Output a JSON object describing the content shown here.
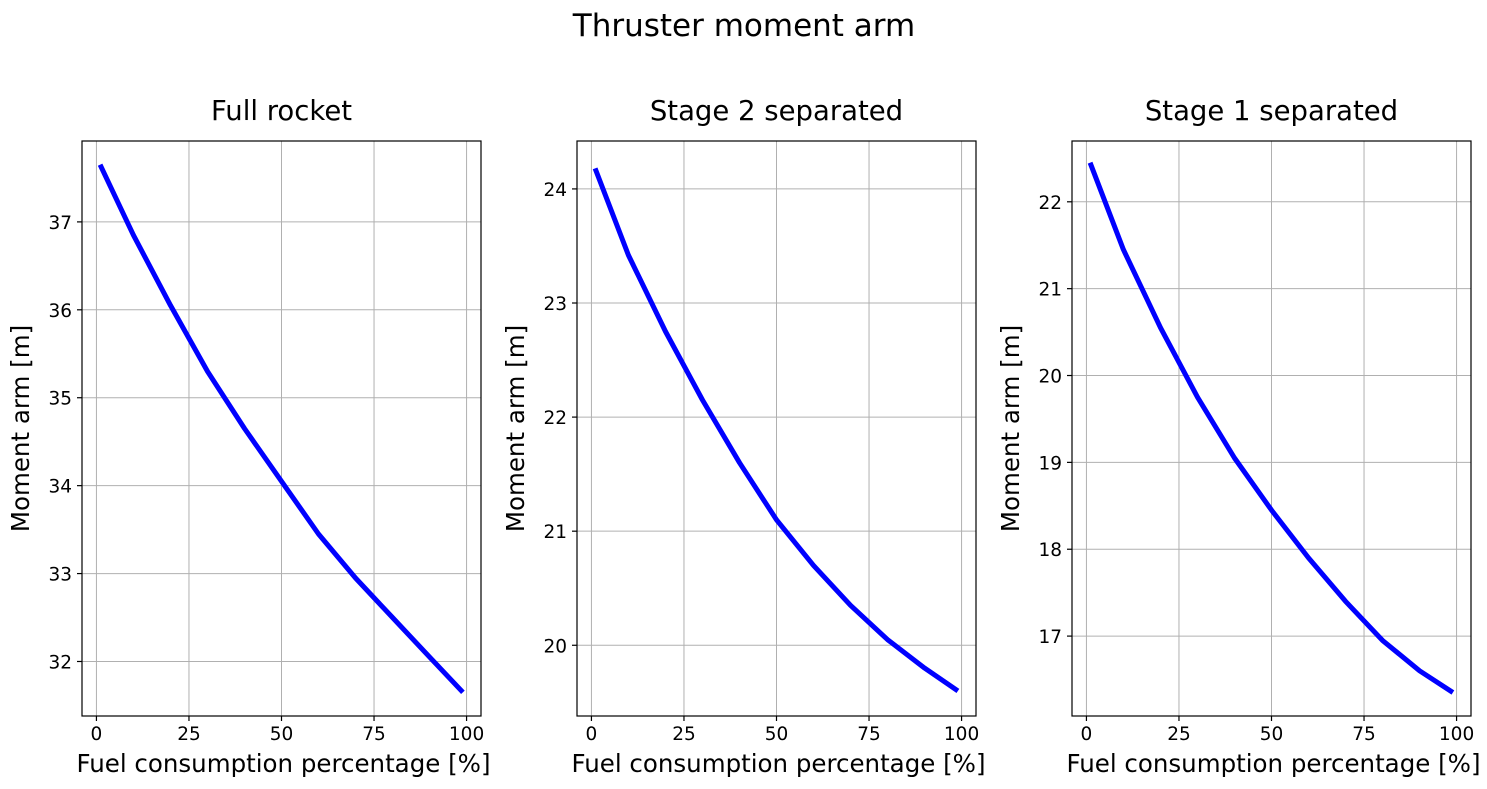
{
  "figure": {
    "title": "Thruster moment arm"
  },
  "style": {
    "line_color": "#0000ff",
    "grid_color": "#b0b0b0",
    "frame_color": "#000000",
    "background": "#ffffff"
  },
  "chart_data": [
    {
      "type": "line",
      "title": "Full rocket",
      "xlabel": "Fuel consumption percentage [%]",
      "ylabel": "Moment arm [m]",
      "xlim": [
        -3.9,
        103.9
      ],
      "ylim": [
        31.38,
        37.92
      ],
      "xticks": [
        0,
        25,
        50,
        75,
        100
      ],
      "yticks": [
        32,
        33,
        34,
        35,
        36,
        37
      ],
      "grid": true,
      "series": [
        {
          "x": [
            1,
            10,
            20,
            30,
            40,
            50,
            60,
            70,
            80,
            90,
            99
          ],
          "y": [
            37.65,
            36.85,
            36.05,
            35.3,
            34.65,
            34.05,
            33.45,
            32.95,
            32.5,
            32.05,
            31.65
          ]
        }
      ]
    },
    {
      "type": "line",
      "title": "Stage 2 separated",
      "xlabel": "Fuel consumption percentage [%]",
      "ylabel": "Moment arm [m]",
      "xlim": [
        -3.9,
        103.9
      ],
      "ylim": [
        19.38,
        24.42
      ],
      "xticks": [
        0,
        25,
        50,
        75,
        100
      ],
      "yticks": [
        20,
        21,
        22,
        23,
        24
      ],
      "grid": true,
      "series": [
        {
          "x": [
            1,
            10,
            20,
            30,
            40,
            50,
            60,
            70,
            80,
            90,
            99
          ],
          "y": [
            24.18,
            23.42,
            22.75,
            22.15,
            21.6,
            21.1,
            20.7,
            20.35,
            20.05,
            19.8,
            19.6
          ]
        }
      ]
    },
    {
      "type": "line",
      "title": "Stage 1 separated",
      "xlabel": "Fuel consumption percentage [%]",
      "ylabel": "Moment arm [m]",
      "xlim": [
        -3.9,
        103.9
      ],
      "ylim": [
        16.08,
        22.7
      ],
      "xticks": [
        0,
        25,
        50,
        75,
        100
      ],
      "yticks": [
        17,
        18,
        19,
        20,
        21,
        22
      ],
      "grid": true,
      "series": [
        {
          "x": [
            1,
            10,
            20,
            30,
            40,
            50,
            60,
            70,
            80,
            90,
            99
          ],
          "y": [
            22.45,
            21.45,
            20.55,
            19.75,
            19.05,
            18.45,
            17.9,
            17.4,
            16.95,
            16.6,
            16.35
          ]
        }
      ]
    }
  ]
}
